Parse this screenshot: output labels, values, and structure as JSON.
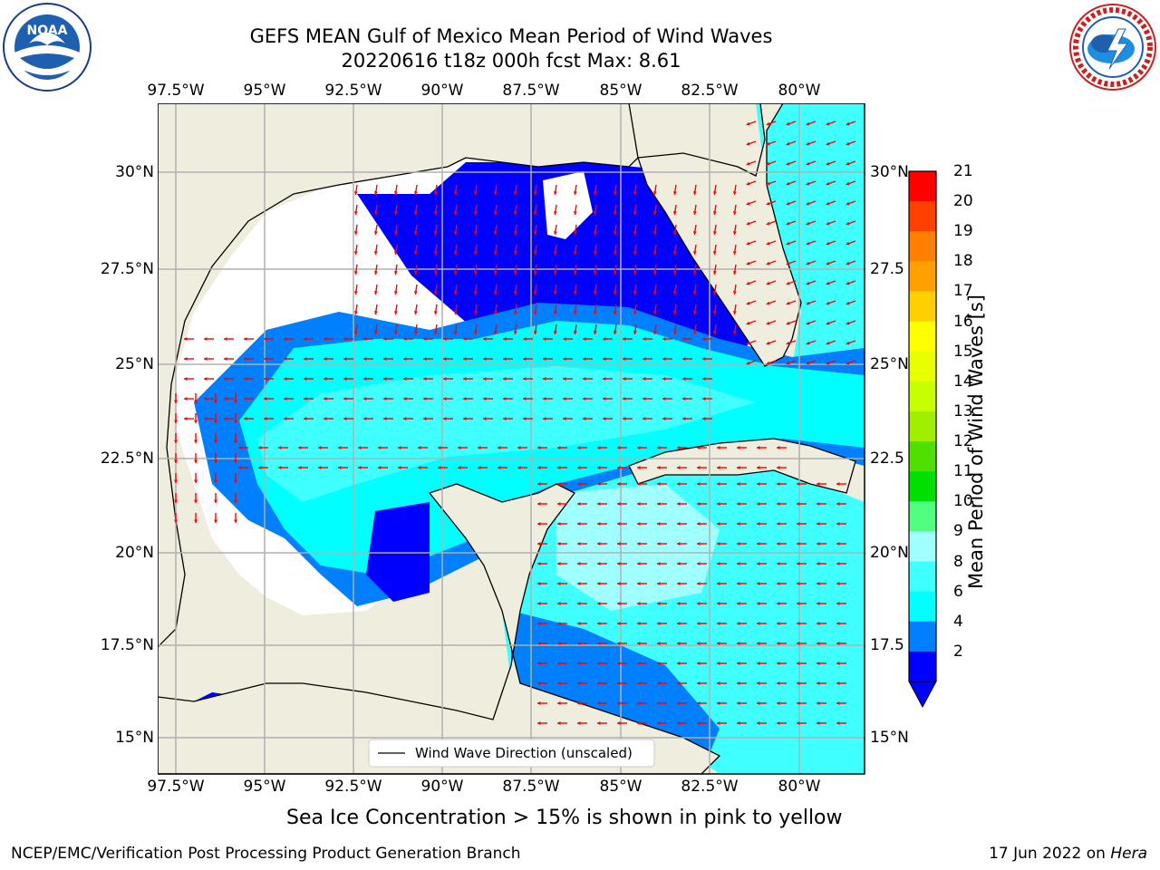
{
  "header": {
    "title_line1": "GEFS MEAN Gulf of Mexico Mean Period of Wind Waves",
    "title_line2": "20220616 t18z 000h fcst   Max: 8.61"
  },
  "logos": {
    "left": "NOAA",
    "left_ring_text": "NATIONAL OCEANIC AND ATMOSPHERIC ADMINISTRATION · U.S. DEPARTMENT OF COMMERCE",
    "right_ring_text": "NATIONAL WEATHER SERVICE"
  },
  "map": {
    "lon_ticks": [
      "97.5°W",
      "95°W",
      "92.5°W",
      "90°W",
      "87.5°W",
      "85°W",
      "82.5°W",
      "80°W"
    ],
    "lat_ticks_left": [
      "30°N",
      "27.5°N",
      "25°N",
      "22.5°N",
      "20°N",
      "17.5°N",
      "15°N"
    ],
    "lat_ticks_right": [
      "30°N",
      "27.5",
      "25°N",
      "22.5",
      "20°N",
      "17.5",
      "15°N"
    ],
    "legend_label": "Wind Wave Direction (unscaled)",
    "colors": {
      "land": "#efedde",
      "no_data": "#ffffff",
      "grid": "#b0b0b0",
      "arrow": "#ff0000"
    }
  },
  "colorbar": {
    "label": "Mean Period of Wind Waves [s]",
    "ticks": [
      "2",
      "4",
      "6",
      "8",
      "9",
      "10",
      "11",
      "12",
      "13",
      "14",
      "15",
      "16",
      "17",
      "18",
      "19",
      "20",
      "21"
    ],
    "colors": [
      "#0000ff",
      "#0080ff",
      "#00ffff",
      "#40ffff",
      "#a0ffff",
      "#50ff80",
      "#00e000",
      "#50e000",
      "#a0ee00",
      "#c8ff00",
      "#e8ff00",
      "#ffff00",
      "#ffd000",
      "#ffa000",
      "#ff8000",
      "#ff4000",
      "#ff0000"
    ]
  },
  "footer": {
    "sea_ice_note": "Sea Ice Concentration > 15% is shown in pink to yellow",
    "left": "NCEP/EMC/Verification Post Processing Product Generation Branch",
    "right_date": "17 Jun 2022 on ",
    "right_machine": "Hera"
  }
}
